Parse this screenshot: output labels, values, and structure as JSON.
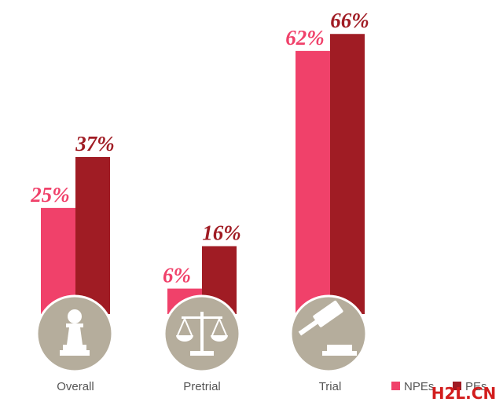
{
  "chart_data": {
    "type": "bar",
    "categories": [
      "Overall",
      "Pretrial",
      "Trial"
    ],
    "series": [
      {
        "name": "NPEs",
        "color": "#f0416a",
        "values": [
          25,
          6,
          62
        ],
        "value_labels": [
          "25%",
          "6%",
          "62%"
        ]
      },
      {
        "name": "PEs",
        "color": "#a01c24",
        "values": [
          37,
          16,
          66
        ],
        "value_labels": [
          "37%",
          "16%",
          "66%"
        ]
      }
    ],
    "ylim": [
      0,
      74
    ],
    "watermark": "H2L.CN"
  }
}
